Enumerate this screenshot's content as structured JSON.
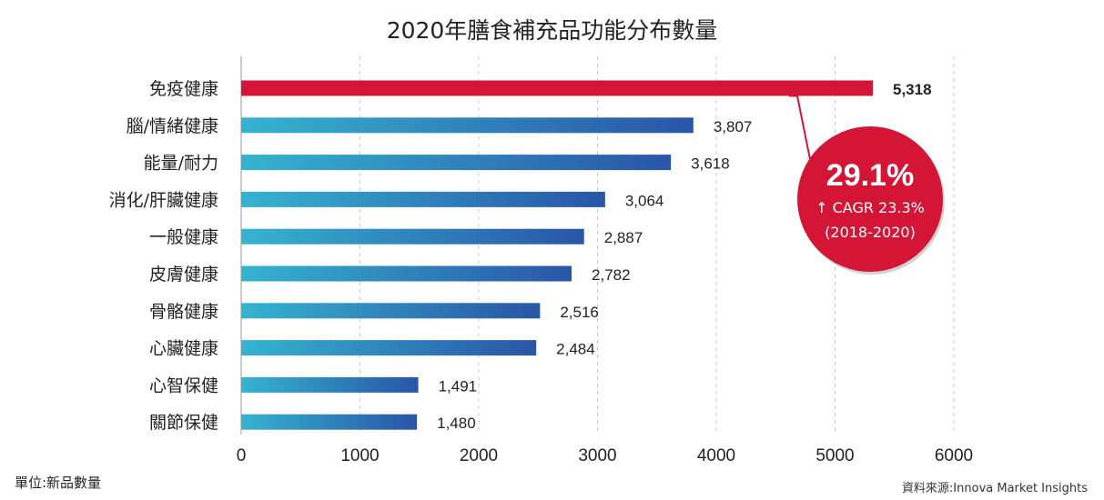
{
  "header": {
    "title": "2020年膳食補充品功能分布數量"
  },
  "footer": {
    "unit_note": "單位:新品數量",
    "source_note": "資料來源:Innova Market Insights"
  },
  "colors": {
    "highlight": "#d41535",
    "bar_start": "#35b3cf",
    "bar_end": "#2a55a8",
    "grid": "#c8c8c8"
  },
  "chart_data": {
    "type": "bar",
    "orientation": "horizontal",
    "title": "2020年膳食補充品功能分布數量",
    "categories": [
      "免疫健康",
      "腦/情緒健康",
      "能量/耐力",
      "消化/肝臟健康",
      "一般健康",
      "皮膚健康",
      "骨骼健康",
      "心臟健康",
      "心智保健",
      "關節保健"
    ],
    "values": [
      5318,
      3807,
      3618,
      3064,
      2887,
      2782,
      2516,
      2484,
      1491,
      1480
    ],
    "value_labels": [
      "5,318",
      "3,807",
      "3,618",
      "3,064",
      "2,887",
      "2,782",
      "2,516",
      "2,484",
      "1,491",
      "1,480"
    ],
    "highlight_index": 0,
    "xlim": [
      0,
      6000
    ],
    "xticks": [
      0,
      1000,
      2000,
      3000,
      4000,
      5000,
      6000
    ],
    "grid": "vertical dashed",
    "annotation": {
      "main": "29.1%",
      "line2": "↑ CAGR 23.3%",
      "line3": "(2018-2020)"
    }
  }
}
